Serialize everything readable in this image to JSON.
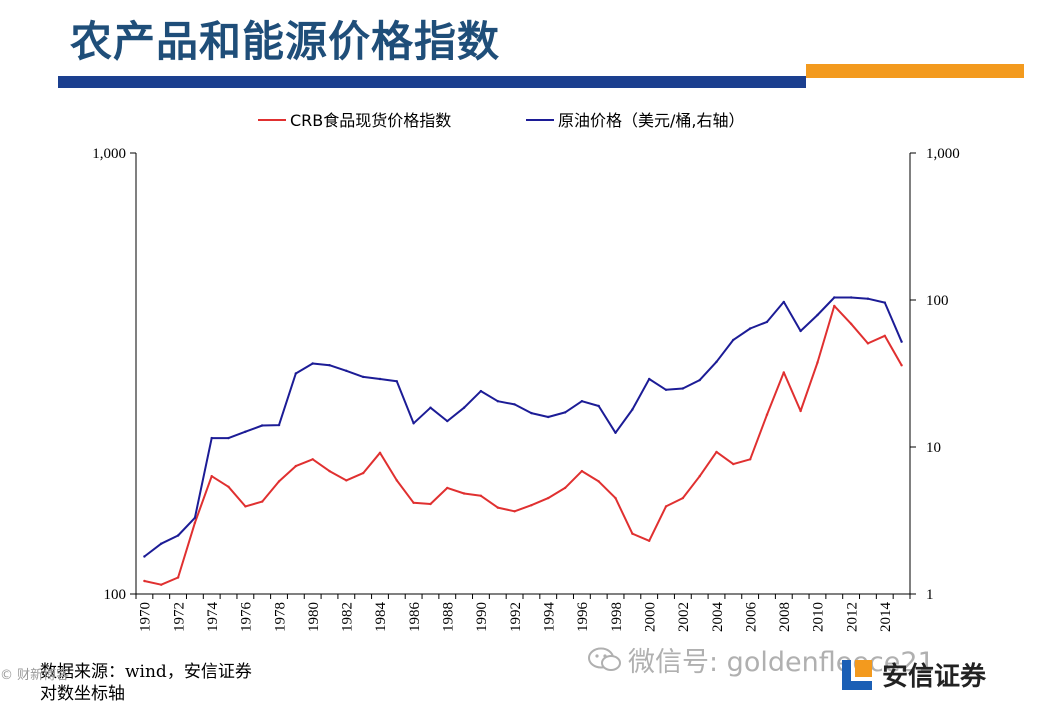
{
  "slide": {
    "title": "农产品和能源价格指数",
    "source": "数据来源：wind，安信证券",
    "note": "对数坐标轴",
    "watermark_left": "© 财新博客",
    "watermark_right": "微信号: goldenfleece21",
    "logo_text": "安信证券"
  },
  "colors": {
    "title": "#1f4e79",
    "accent_navy": "#1b3f8f",
    "accent_orange": "#f39a1e",
    "series_crb": "#e03030",
    "series_oil": "#1c1c96"
  },
  "chart_data": {
    "type": "line",
    "title": "",
    "xlabel": "",
    "ylabel": "",
    "y_scale": "log",
    "ylim": [
      100,
      1000
    ],
    "y2lim": [
      1,
      1000
    ],
    "y_ticks": [
      100,
      1000
    ],
    "y_tick_labels": [
      "100",
      "1,000"
    ],
    "y2_ticks": [
      1,
      10,
      100,
      1000
    ],
    "y2_tick_labels": [
      "1",
      "10",
      "100",
      "1,000"
    ],
    "x": [
      1970,
      1971,
      1972,
      1973,
      1974,
      1975,
      1976,
      1977,
      1978,
      1979,
      1980,
      1981,
      1982,
      1983,
      1984,
      1985,
      1986,
      1987,
      1988,
      1989,
      1990,
      1991,
      1992,
      1993,
      1994,
      1995,
      1996,
      1997,
      1998,
      1999,
      2000,
      2001,
      2002,
      2003,
      2004,
      2005,
      2006,
      2007,
      2008,
      2009,
      2010,
      2011,
      2012,
      2013,
      2014,
      2015
    ],
    "x_tick_labels": [
      "1970",
      "1972",
      "1974",
      "1976",
      "1978",
      "1980",
      "1982",
      "1984",
      "1986",
      "1988",
      "1990",
      "1992",
      "1994",
      "1996",
      "1998",
      "2000",
      "2002",
      "2004",
      "2006",
      "2008",
      "2010",
      "2012",
      "2014"
    ],
    "legend_position": "top",
    "grid": false,
    "series": [
      {
        "name": "CRB食品现货价格指数",
        "axis": "left",
        "values": [
          107,
          105,
          109,
          145,
          185,
          175,
          158,
          162,
          180,
          195,
          202,
          190,
          181,
          188,
          209,
          181,
          161,
          160,
          174,
          169,
          167,
          157,
          154,
          159,
          165,
          174,
          190,
          180,
          165,
          137,
          132,
          158,
          165,
          185,
          210,
          197,
          202,
          255,
          318,
          260,
          335,
          450,
          410,
          370,
          385,
          330
        ]
      },
      {
        "name": "原油价格（美元/桶,右轴）",
        "axis": "right",
        "values": [
          1.8,
          2.2,
          2.5,
          3.3,
          11.5,
          11.5,
          12.7,
          14,
          14.1,
          31.6,
          37,
          36,
          33,
          30,
          29,
          28,
          14.5,
          18.5,
          15,
          18.5,
          24,
          20.5,
          19.5,
          17,
          16,
          17.2,
          20.5,
          19,
          12.5,
          18,
          29,
          24.5,
          25,
          28.5,
          38,
          53.5,
          64,
          71,
          97,
          61.5,
          79,
          104,
          104,
          102,
          96,
          52
        ]
      }
    ]
  }
}
